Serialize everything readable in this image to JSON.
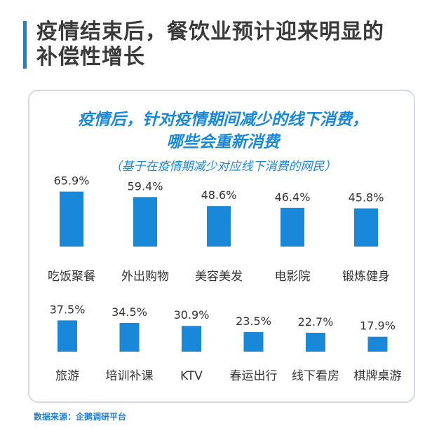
{
  "heading": "疫情结束后，餐饮业预计迎来明显的补偿性增长",
  "source": "数据来源：企鹅调研平台",
  "colors": {
    "accent": "#1f7fd6",
    "bar": "#1a88d8"
  },
  "chart_data": {
    "type": "bar",
    "title": "疫情后，针对疫情期间减少的线下消费，哪些会重新消费",
    "subtitle": "（基于在疫情期减少对应线下消费的网民）",
    "unit": "%",
    "rows": [
      {
        "categories": [
          "吃饭聚餐",
          "外出购物",
          "美容美发",
          "电影院",
          "锻炼健身"
        ],
        "values": [
          65.9,
          59.4,
          48.6,
          46.4,
          45.8
        ],
        "labels": [
          "65.9%",
          "59.4%",
          "48.6%",
          "46.4%",
          "45.8%"
        ]
      },
      {
        "categories": [
          "旅游",
          "培训补课",
          "KTV",
          "春运出行",
          "线下看房",
          "棋牌桌游"
        ],
        "values": [
          37.5,
          34.5,
          30.9,
          23.5,
          22.7,
          17.9
        ],
        "labels": [
          "37.5%",
          "34.5%",
          "30.9%",
          "23.5%",
          "22.7%",
          "17.9%"
        ]
      }
    ]
  }
}
